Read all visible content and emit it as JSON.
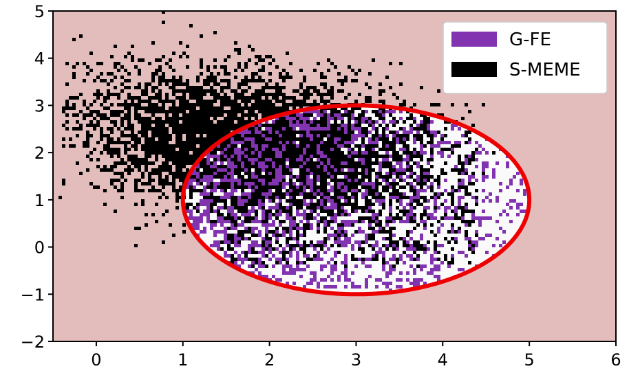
{
  "chart_data": {
    "type": "scatter",
    "title": "",
    "xlabel": "",
    "ylabel": "",
    "xlim": [
      -0.5,
      6
    ],
    "ylim": [
      -2,
      5
    ],
    "xticks": [
      0,
      1,
      2,
      3,
      4,
      5,
      6
    ],
    "yticks": [
      -2,
      -1,
      0,
      1,
      2,
      3,
      4,
      5
    ],
    "xtick_labels": [
      "0",
      "1",
      "2",
      "3",
      "4",
      "5",
      "6"
    ],
    "ytick_labels": [
      "−2",
      "−1",
      "0",
      "1",
      "2",
      "3",
      "4",
      "5"
    ],
    "grid": false,
    "background_color": "#e3bcbc",
    "legend": {
      "placement": "top-right"
    },
    "series": [
      {
        "name": "G-FE",
        "color": "#8233b0",
        "distribution": {
          "center": [
            3.0,
            1.0
          ],
          "extent_x": [
            1.0,
            5.0
          ],
          "extent_y": [
            -0.9,
            2.9
          ]
        }
      },
      {
        "name": "S-MEME",
        "color": "#000000",
        "distribution": {
          "center": [
            1.8,
            2.2
          ],
          "extent_x": [
            -0.4,
            4.6
          ],
          "extent_y": [
            -0.6,
            5.0
          ]
        }
      }
    ],
    "annotations": [
      {
        "type": "ellipse",
        "center": [
          3.0,
          1.0
        ],
        "width": 4.0,
        "height": 4.0,
        "edge_color": "#ee0000",
        "fill_color": "#fafafa"
      }
    ]
  }
}
